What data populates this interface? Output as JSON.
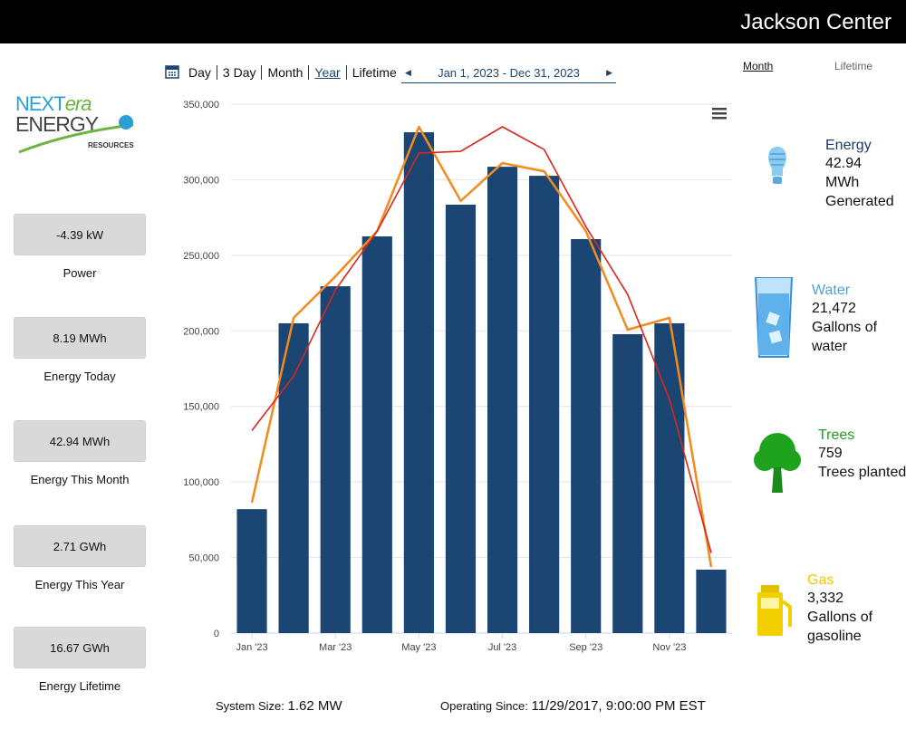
{
  "header": {
    "title": "Jackson Center"
  },
  "logo": {
    "brand_a": "NEXT",
    "brand_b": "era",
    "brand_c": "ENERGY",
    "subtitle": "RESOURCES"
  },
  "stats": [
    {
      "value": "-4.39 kW",
      "label": "Power"
    },
    {
      "value": "8.19 MWh",
      "label": "Energy Today"
    },
    {
      "value": "42.94 MWh",
      "label": "Energy This Month"
    },
    {
      "value": "2.71 GWh",
      "label": "Energy This Year"
    },
    {
      "value": "16.67 GWh",
      "label": "Energy Lifetime"
    }
  ],
  "nav": {
    "ranges": [
      "Day",
      "3 Day",
      "Month",
      "Year",
      "Lifetime"
    ],
    "selected": "Year",
    "date_range": "Jan 1, 2023 - Dec 31, 2023"
  },
  "chart_data": {
    "type": "bar",
    "categories": [
      "Jan '23",
      null,
      "Mar '23",
      null,
      "May '23",
      null,
      "Jul '23",
      null,
      "Sep '23",
      null,
      "Nov '23",
      null
    ],
    "series": [
      {
        "type": "bar",
        "color": "#1b4674",
        "values": [
          82000,
          205000,
          229500,
          262500,
          331400,
          283500,
          308600,
          302600,
          260700,
          197800,
          205000,
          42000
        ]
      },
      {
        "type": "line",
        "color": "#f28a1e",
        "values": [
          86300,
          208600,
          236000,
          266000,
          335000,
          286000,
          311000,
          305600,
          266000,
          200800,
          208600,
          43700
        ]
      },
      {
        "type": "line",
        "color": "#d9261c",
        "values": [
          134000,
          170000,
          227000,
          266000,
          317600,
          318800,
          335000,
          320000,
          269000,
          224000,
          155000,
          53000
        ]
      }
    ],
    "ylim": [
      0,
      350000
    ],
    "yticks": [
      0,
      {
        "value": 50000,
        "label": "50,000"
      },
      {
        "value": 100000,
        "label": "100,000"
      },
      {
        "value": 150000,
        "label": "150,000"
      },
      {
        "value": 200000,
        "label": "200,000"
      },
      {
        "value": 250000,
        "label": "250,000"
      },
      {
        "value": 300000,
        "label": "300,000"
      },
      {
        "value": 350000,
        "label": "350,000"
      }
    ],
    "grid": true
  },
  "impact": {
    "tabs": [
      "Month",
      "Lifetime"
    ],
    "selected": "Month",
    "items": [
      {
        "title": "Energy",
        "color": "#1f3a6a",
        "value": "42.94",
        "desc": "MWh Generated"
      },
      {
        "title": "Water",
        "color": "#4fa3d9",
        "value": "21,472",
        "desc": "Gallons of water"
      },
      {
        "title": "Trees",
        "color": "#1e9e1e",
        "value": "759",
        "desc": "Trees planted"
      },
      {
        "title": "Gas",
        "color": "#f2c500",
        "value": "3,332",
        "desc": "Gallons of gasoline"
      }
    ]
  },
  "footer": {
    "system_size_label": "System Size:",
    "system_size": "1.62 MW",
    "operating_since_label": "Operating Since:",
    "operating_since": "11/29/2017, 9:00:00 PM EST"
  }
}
